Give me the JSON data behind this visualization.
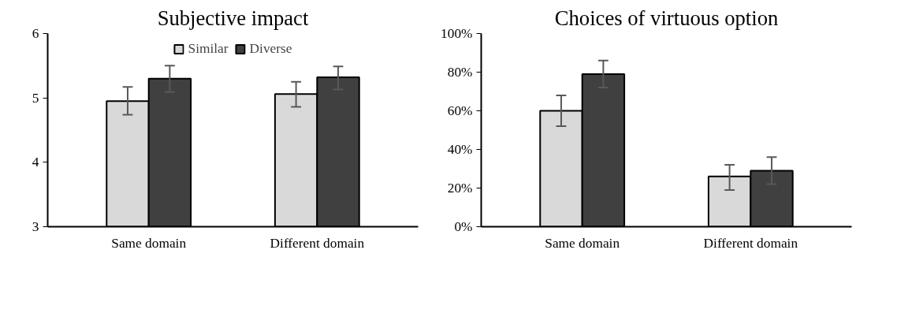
{
  "chart_data": [
    {
      "type": "bar",
      "title": "Subjective impact",
      "categories": [
        "Same domain",
        "Different domain"
      ],
      "ylim": [
        3,
        6
      ],
      "yticks": [
        3,
        4,
        5,
        6
      ],
      "grid": false,
      "legend": "top",
      "series": [
        {
          "name": "Similar",
          "color": "#d9d9d9",
          "values": [
            4.95,
            5.06
          ],
          "errors": [
            [
              4.74,
              5.17
            ],
            [
              4.86,
              5.25
            ]
          ]
        },
        {
          "name": "Diverse",
          "color": "#404040",
          "values": [
            5.3,
            5.32
          ],
          "errors": [
            [
              5.09,
              5.5
            ],
            [
              5.13,
              5.49
            ]
          ]
        }
      ]
    },
    {
      "type": "bar",
      "title": "Choices of virtuous option",
      "categories": [
        "Same domain",
        "Different domain"
      ],
      "ylim": [
        0,
        100
      ],
      "yticks": [
        {
          "value": 0,
          "label": "0%"
        },
        {
          "value": 20,
          "label": "20%"
        },
        {
          "value": 40,
          "label": "40%"
        },
        {
          "value": 60,
          "label": "60%"
        },
        {
          "value": 80,
          "label": "80%"
        },
        {
          "value": 100,
          "label": "100%"
        }
      ],
      "grid": false,
      "series": [
        {
          "color": "#d9d9d9",
          "values": [
            60,
            26
          ],
          "errors": [
            [
              52,
              68
            ],
            [
              19,
              32
            ]
          ]
        },
        {
          "color": "#404040",
          "values": [
            79,
            29
          ],
          "errors": [
            [
              72,
              86
            ],
            [
              22,
              36
            ]
          ]
        }
      ]
    }
  ]
}
